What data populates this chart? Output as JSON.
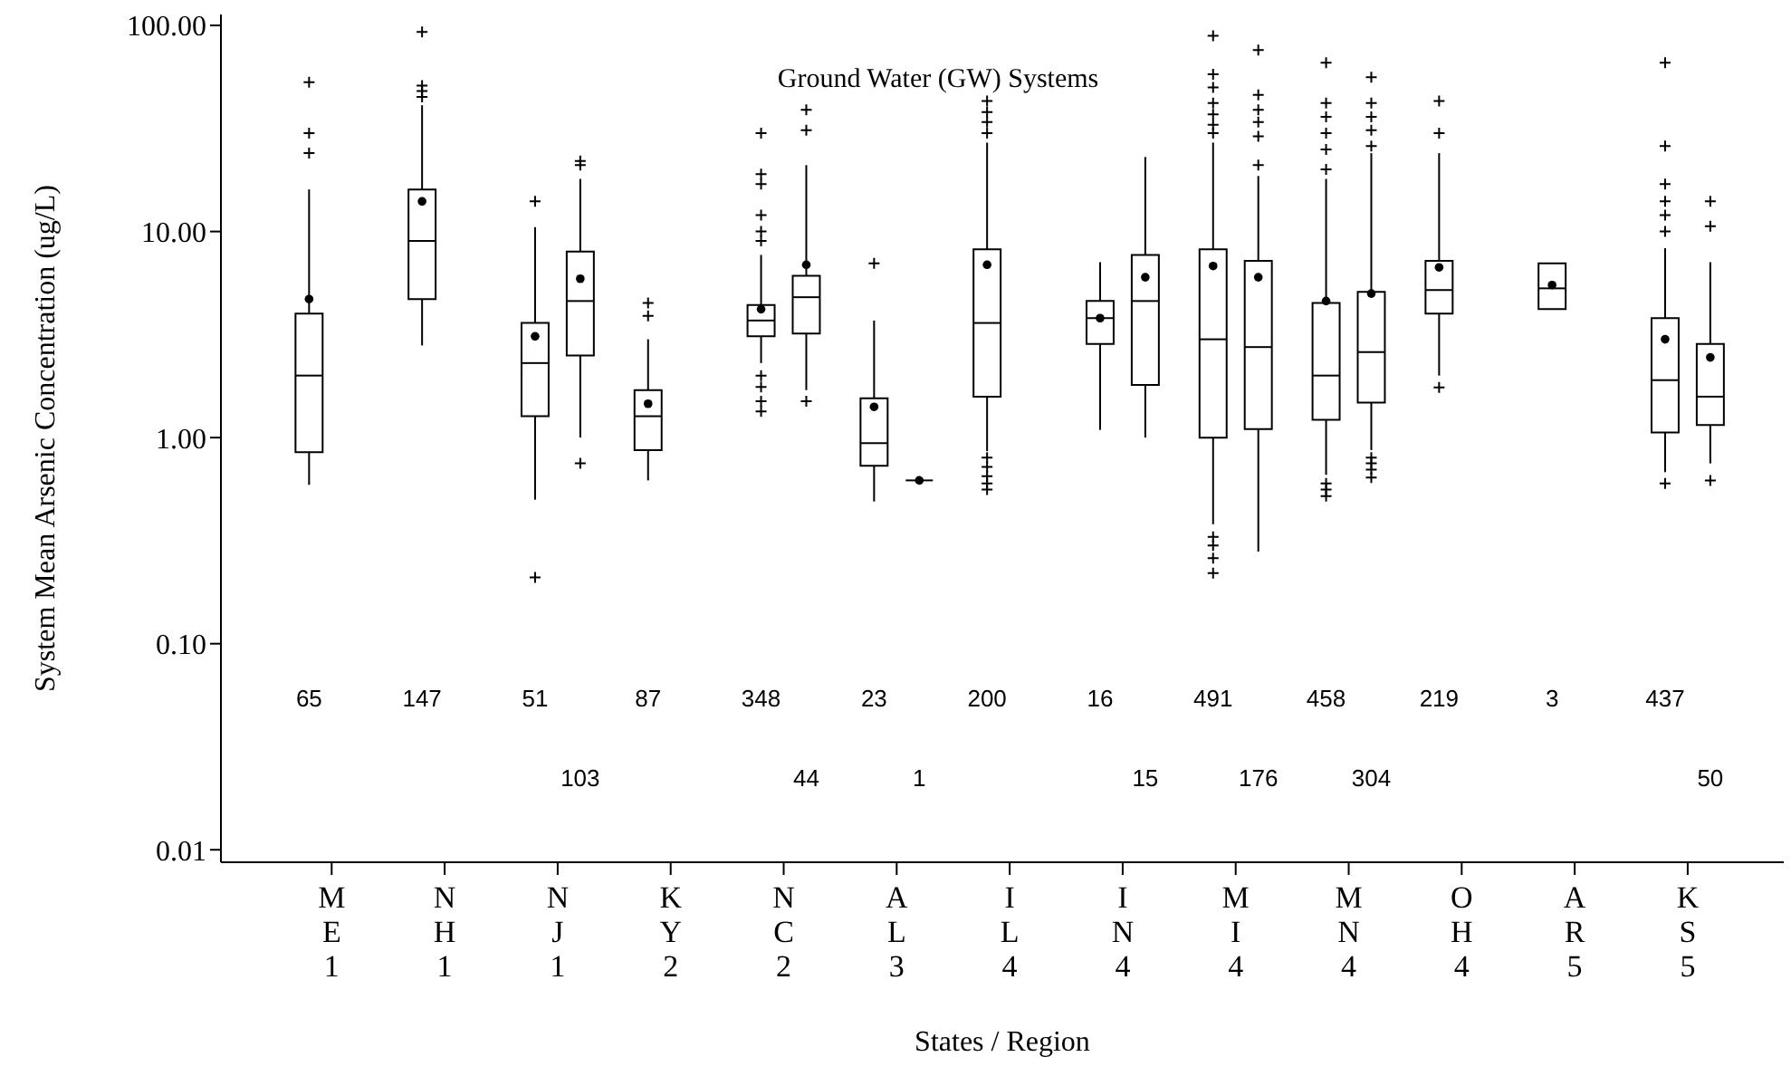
{
  "chart_data": {
    "type": "box",
    "title": "Ground Water (GW) Systems",
    "xlabel": "States / Region",
    "ylabel": "System Mean Arsenic Concentration (ug/L)",
    "log": "y",
    "grid": false,
    "legend": false,
    "categories": [
      "M\nE\n1",
      "N\nH\n1",
      "N\nJ\n1",
      "K\nY\n2",
      "N\nC\n2",
      "A\nL\n3",
      "I\nL\n4",
      "I\nN\n4",
      "M\nI\n4",
      "M\nN\n4",
      "O\nH\n4",
      "A\nR\n5",
      "K\nS\n5"
    ],
    "ylim": [
      0.0087,
      113
    ],
    "yticks": [
      {
        "value": 0.01,
        "label": "0.01"
      },
      {
        "value": 0.1,
        "label": "0.10"
      },
      {
        "value": 1,
        "label": "1.00"
      },
      {
        "value": 10,
        "label": "10.00"
      },
      {
        "value": 100,
        "label": "100.00"
      }
    ],
    "series": [
      {
        "color": "#000000",
        "boxes": [
          {
            "low": 0.59,
            "q1": 0.85,
            "median": 2.0,
            "q3": 4.0,
            "high": 16,
            "mean": 4.7,
            "outliers": [
              24,
              30,
              53
            ]
          },
          {
            "low": 2.8,
            "q1": 4.7,
            "median": 9.0,
            "q3": 16,
            "high": 41,
            "mean": 14,
            "outliers": [
              45,
              48,
              51,
              93
            ]
          },
          {
            "low": 0.5,
            "q1": 1.27,
            "median": 2.3,
            "q3": 3.6,
            "high": 10.5,
            "mean": 3.1,
            "outliers": [
              0.21,
              14
            ]
          },
          {
            "low": 0.62,
            "q1": 0.87,
            "median": 1.27,
            "q3": 1.7,
            "high": 3.0,
            "mean": 1.46,
            "outliers": [
              3.9,
              4.5
            ]
          },
          {
            "low": 2.3,
            "q1": 3.1,
            "median": 3.7,
            "q3": 4.4,
            "high": 7.7,
            "mean": 4.2,
            "outliers": [
              1.34,
              1.5,
              1.76,
              2.0,
              9,
              10,
              12,
              17,
              19,
              30
            ]
          },
          {
            "low": 0.49,
            "q1": 0.73,
            "median": 0.94,
            "q3": 1.55,
            "high": 3.7,
            "mean": 1.41,
            "outliers": [
              7.0
            ]
          },
          {
            "low": 0.86,
            "q1": 1.58,
            "median": 3.6,
            "q3": 8.2,
            "high": 27,
            "mean": 6.9,
            "outliers": [
              0.56,
              0.6,
              0.65,
              0.72,
              0.8,
              30,
              34,
              38,
              43
            ]
          },
          {
            "low": 1.09,
            "q1": 2.85,
            "median": 3.8,
            "q3": 4.6,
            "high": 7.1,
            "mean": 3.8
          },
          {
            "low": 0.38,
            "q1": 1.0,
            "median": 3.0,
            "q3": 8.2,
            "high": 27,
            "mean": 6.8,
            "outliers": [
              0.22,
              0.26,
              0.3,
              0.33,
              30,
              33,
              37,
              42,
              50,
              58,
              89
            ]
          },
          {
            "low": 0.66,
            "q1": 1.22,
            "median": 2.0,
            "q3": 4.5,
            "high": 18,
            "mean": 4.6,
            "outliers": [
              0.52,
              0.56,
              0.6,
              20,
              25,
              30,
              36,
              42,
              66
            ]
          },
          {
            "low": 2.0,
            "q1": 4.0,
            "median": 5.2,
            "q3": 7.2,
            "high": 24,
            "mean": 6.7,
            "outliers": [
              1.75,
              30,
              43
            ]
          },
          {
            "low": 4.2,
            "q1": 4.2,
            "median": 5.3,
            "q3": 7.0,
            "high": 7.0,
            "mean": 5.5
          },
          {
            "low": 0.68,
            "q1": 1.06,
            "median": 1.9,
            "q3": 3.8,
            "high": 8.3,
            "mean": 3.0,
            "outliers": [
              0.6,
              10,
              12,
              14,
              17,
              26,
              66
            ]
          }
        ]
      },
      {
        "color": "#000000",
        "boxes": [
          null,
          null,
          {
            "low": 1.0,
            "q1": 2.5,
            "median": 4.6,
            "q3": 8.0,
            "high": 18,
            "mean": 5.9,
            "outliers": [
              0.75,
              21,
              22
            ]
          },
          null,
          {
            "low": 1.7,
            "q1": 3.2,
            "median": 4.8,
            "q3": 6.1,
            "high": 21,
            "mean": 6.9,
            "outliers": [
              1.5,
              31,
              39
            ]
          },
          {
            "low": 0.62,
            "q1": 0.62,
            "median": 0.62,
            "q3": 0.62,
            "high": 0.62,
            "mean": 0.62
          },
          null,
          {
            "low": 1.0,
            "q1": 1.8,
            "median": 4.6,
            "q3": 7.7,
            "high": 23,
            "mean": 6.0
          },
          {
            "low": 0.28,
            "q1": 1.1,
            "median": 2.75,
            "q3": 7.2,
            "high": 18.6,
            "mean": 6.0,
            "outliers": [
              21,
              29,
              34,
              39,
              46,
              76
            ]
          },
          {
            "low": 0.87,
            "q1": 1.48,
            "median": 2.6,
            "q3": 5.1,
            "high": 24,
            "mean": 5.0,
            "outliers": [
              0.64,
              0.7,
              0.75,
              0.8,
              26,
              31,
              36,
              42,
              56
            ]
          },
          null,
          null,
          {
            "low": 0.75,
            "q1": 1.15,
            "median": 1.58,
            "q3": 2.85,
            "high": 7.1,
            "mean": 2.45,
            "outliers": [
              0.62,
              10.6,
              14
            ]
          }
        ]
      }
    ],
    "annotations": [
      "65",
      "147",
      "51",
      "103",
      "87",
      "348",
      "44",
      "23",
      "1",
      "200",
      "16",
      "15",
      "491",
      "176",
      "458",
      "304",
      "219",
      "3",
      "437",
      "50"
    ]
  }
}
